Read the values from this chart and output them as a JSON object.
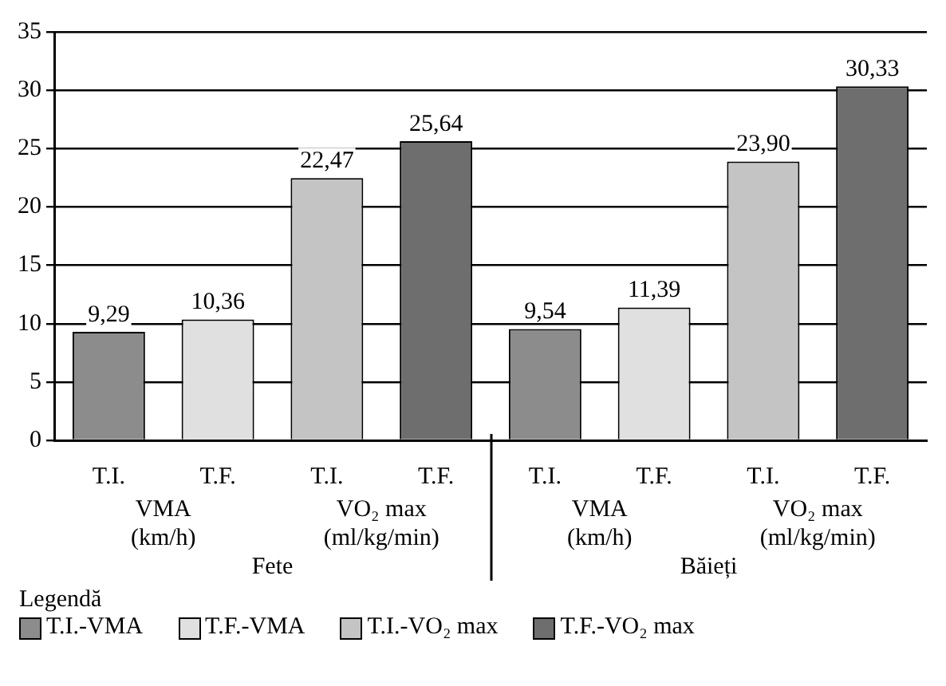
{
  "chart_data": {
    "type": "bar",
    "categories": [
      "T.I.",
      "T.F.",
      "T.I.",
      "T.F.",
      "T.I.",
      "T.F.",
      "T.I.",
      "T.F."
    ],
    "series": [
      {
        "name": "T.I.-VMA",
        "color": "#8c8c8c",
        "values": [
          9.29,
          null,
          null,
          null,
          9.54,
          null,
          null,
          null
        ],
        "value_labels": [
          "9,29",
          null,
          null,
          null,
          "9,54",
          null,
          null,
          null
        ]
      },
      {
        "name": "T.F.-VMA",
        "color": "#e0e0e0",
        "values": [
          null,
          10.36,
          null,
          null,
          null,
          11.39,
          null,
          null
        ],
        "value_labels": [
          null,
          "10,36",
          null,
          null,
          null,
          "11,39",
          null,
          null
        ]
      },
      {
        "name": "T.I.-VO₂ max",
        "color": "#c4c4c4",
        "values": [
          null,
          null,
          22.47,
          null,
          null,
          null,
          23.9,
          null
        ],
        "value_labels": [
          null,
          null,
          "22,47",
          null,
          null,
          null,
          "23,90",
          null
        ]
      },
      {
        "name": "T.F.-VO₂ max",
        "color": "#6e6e6e",
        "values": [
          null,
          null,
          null,
          25.64,
          null,
          null,
          null,
          30.33
        ],
        "value_labels": [
          null,
          null,
          null,
          "25,64",
          null,
          null,
          null,
          "30,33"
        ]
      }
    ],
    "annotations": [
      "VMA (km/h)",
      "VO₂ max (ml/kg/min)",
      "VMA (km/h)",
      "VO₂ max (ml/kg/min)",
      "Fete",
      "Băieți"
    ],
    "legend_title": "Legendă",
    "legend": "bottom left",
    "ylim": [
      0,
      35
    ],
    "yticks": [
      0,
      5,
      10,
      15,
      20,
      25,
      30,
      35
    ],
    "grid": "y"
  }
}
